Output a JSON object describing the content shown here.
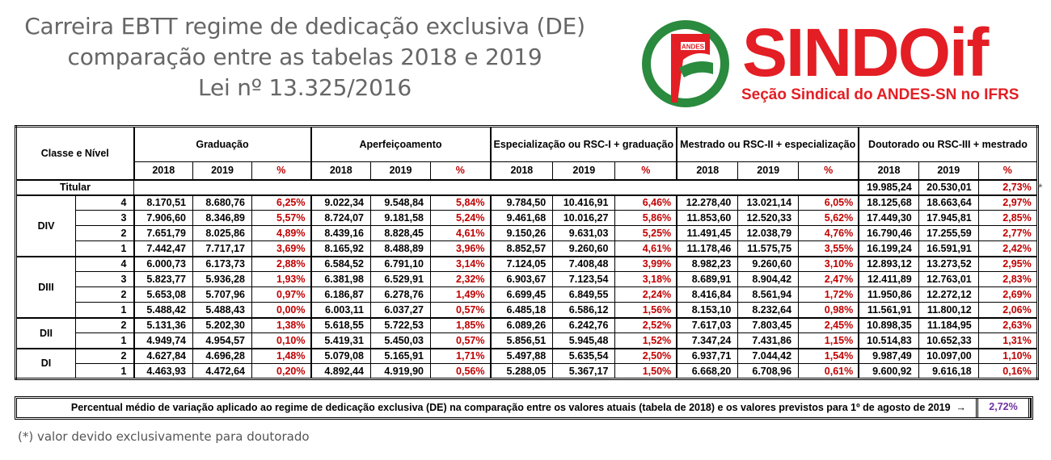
{
  "title": {
    "line1": "Carreira EBTT regime de dedicação exclusiva (DE)",
    "line2": "comparação entre as tabelas 2018 e 2019",
    "line3": "Lei nº 13.325/2016"
  },
  "logo": {
    "badge": "ANDES",
    "word": "SINDOif",
    "subtitle": "Seção Sindical do ANDES-SN no IFRS",
    "colors": {
      "red": "#e31e24",
      "green": "#2a8a3e"
    }
  },
  "table": {
    "classe_header": "Classe e Nível",
    "groups": [
      "Graduação",
      "Aperfeiçoamento",
      "Especialização ou RSC-I + graduação",
      "Mestrado ou RSC-II + especialização",
      "Doutorado ou RSC-III + mestrado"
    ],
    "sub_headers": [
      "2018",
      "2019",
      "%"
    ],
    "titular": {
      "label": "Titular",
      "values": [
        "19.985,24",
        "20.530,01",
        "2,73%"
      ]
    },
    "classes": [
      {
        "name": "DIV",
        "rows": [
          {
            "nivel": "4",
            "values": [
              "8.170,51",
              "8.680,76",
              "6,25%",
              "9.022,34",
              "9.548,84",
              "5,84%",
              "9.784,50",
              "10.416,91",
              "6,46%",
              "12.278,40",
              "13.021,14",
              "6,05%",
              "18.125,68",
              "18.663,64",
              "2,97%"
            ]
          },
          {
            "nivel": "3",
            "values": [
              "7.906,60",
              "8.346,89",
              "5,57%",
              "8.724,07",
              "9.181,58",
              "5,24%",
              "9.461,68",
              "10.016,27",
              "5,86%",
              "11.853,60",
              "12.520,33",
              "5,62%",
              "17.449,30",
              "17.945,81",
              "2,85%"
            ]
          },
          {
            "nivel": "2",
            "values": [
              "7.651,79",
              "8.025,86",
              "4,89%",
              "8.439,16",
              "8.828,45",
              "4,61%",
              "9.150,26",
              "9.631,03",
              "5,25%",
              "11.491,45",
              "12.038,79",
              "4,76%",
              "16.790,46",
              "17.255,59",
              "2,77%"
            ]
          },
          {
            "nivel": "1",
            "values": [
              "7.442,47",
              "7.717,17",
              "3,69%",
              "8.165,92",
              "8.488,89",
              "3,96%",
              "8.852,57",
              "9.260,60",
              "4,61%",
              "11.178,46",
              "11.575,75",
              "3,55%",
              "16.199,24",
              "16.591,91",
              "2,42%"
            ]
          }
        ]
      },
      {
        "name": "DIII",
        "rows": [
          {
            "nivel": "4",
            "values": [
              "6.000,73",
              "6.173,73",
              "2,88%",
              "6.584,52",
              "6.791,10",
              "3,14%",
              "7.124,05",
              "7.408,48",
              "3,99%",
              "8.982,23",
              "9.260,60",
              "3,10%",
              "12.893,12",
              "13.273,52",
              "2,95%"
            ]
          },
          {
            "nivel": "3",
            "values": [
              "5.823,77",
              "5.936,28",
              "1,93%",
              "6.381,98",
              "6.529,91",
              "2,32%",
              "6.903,67",
              "7.123,54",
              "3,18%",
              "8.689,91",
              "8.904,42",
              "2,47%",
              "12.411,89",
              "12.763,01",
              "2,83%"
            ]
          },
          {
            "nivel": "2",
            "values": [
              "5.653,08",
              "5.707,96",
              "0,97%",
              "6.186,87",
              "6.278,76",
              "1,49%",
              "6.699,45",
              "6.849,55",
              "2,24%",
              "8.416,84",
              "8.561,94",
              "1,72%",
              "11.950,86",
              "12.272,12",
              "2,69%"
            ]
          },
          {
            "nivel": "1",
            "values": [
              "5.488,42",
              "5.488,43",
              "0,00%",
              "6.003,11",
              "6.037,27",
              "0,57%",
              "6.485,18",
              "6.586,12",
              "1,56%",
              "8.153,10",
              "8.232,64",
              "0,98%",
              "11.561,91",
              "11.800,12",
              "2,06%"
            ]
          }
        ]
      },
      {
        "name": "DII",
        "rows": [
          {
            "nivel": "2",
            "values": [
              "5.131,36",
              "5.202,30",
              "1,38%",
              "5.618,55",
              "5.722,53",
              "1,85%",
              "6.089,26",
              "6.242,76",
              "2,52%",
              "7.617,03",
              "7.803,45",
              "2,45%",
              "10.898,35",
              "11.184,95",
              "2,63%"
            ]
          },
          {
            "nivel": "1",
            "values": [
              "4.949,74",
              "4.954,57",
              "0,10%",
              "5.419,31",
              "5.450,03",
              "0,57%",
              "5.856,51",
              "5.945,48",
              "1,52%",
              "7.347,24",
              "7.431,86",
              "1,15%",
              "10.514,83",
              "10.652,33",
              "1,31%"
            ]
          }
        ]
      },
      {
        "name": "DI",
        "rows": [
          {
            "nivel": "2",
            "values": [
              "4.627,84",
              "4.696,28",
              "1,48%",
              "5.079,08",
              "5.165,91",
              "1,71%",
              "5.497,88",
              "5.635,54",
              "2,50%",
              "6.937,71",
              "7.044,42",
              "1,54%",
              "9.987,49",
              "10.097,00",
              "1,10%"
            ]
          },
          {
            "nivel": "1",
            "values": [
              "4.463,93",
              "4.472,64",
              "0,20%",
              "4.892,44",
              "4.919,90",
              "0,56%",
              "5.288,05",
              "5.367,17",
              "1,50%",
              "6.668,20",
              "6.708,96",
              "0,61%",
              "9.600,92",
              "9.616,18",
              "0,16%"
            ]
          }
        ]
      }
    ],
    "asterisk": "*"
  },
  "average": {
    "text": "Percentual médio de variação aplicado ao regime de dedicação exclusiva (DE) na comparação entre os valores atuais (tabela de 2018) e os valores previstos para 1º de agosto de 2019",
    "arrow": "→",
    "value": "2,72%"
  },
  "footnote": "(*) valor devido exclusivamente para doutorado",
  "colors": {
    "title_gray": "#666666",
    "percent_red": "#c00000",
    "average_purple": "#7030a0"
  }
}
